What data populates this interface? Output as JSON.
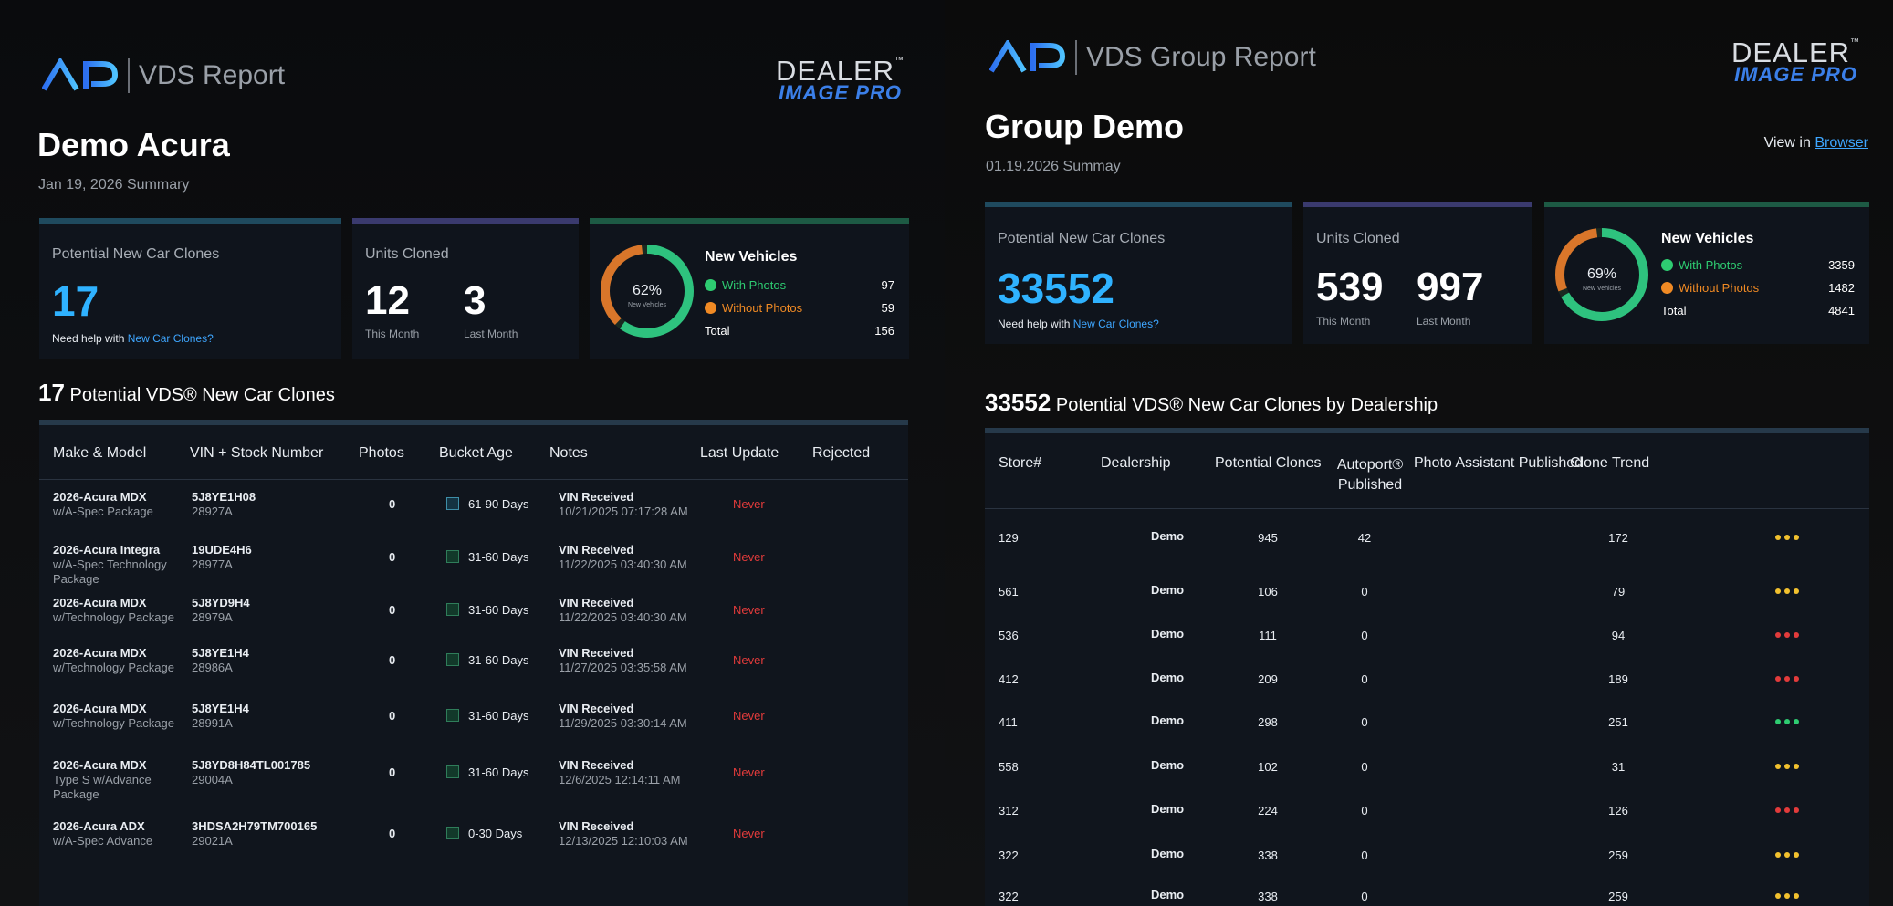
{
  "left": {
    "report_title": "VDS Report",
    "brand_top": "DEALER",
    "brand_tm": "™",
    "brand_bottom": "IMAGE PRO",
    "store_name": "Demo Acura",
    "summary": "Jan 19, 2026 Summary",
    "clones_card": {
      "title": "Potential New Car Clones",
      "value": "17",
      "help_text": "Need help with",
      "help_link": "New Car Clones?"
    },
    "units_card": {
      "title": "Units Cloned",
      "this_month": "12",
      "this_month_label": "This Month",
      "last_month": "3",
      "last_month_label": "Last Month"
    },
    "new_vehicles": {
      "title": "New Vehicles",
      "percent": "62%",
      "ring_label": "New Vehicles",
      "with_photos_label": "With Photos",
      "with_photos": "97",
      "without_photos_label": "Without Photos",
      "without_photos": "59",
      "total_label": "Total",
      "total": "156",
      "fraction": 0.62
    },
    "section_count": "17",
    "section_title": "Potential VDS® New Car Clones",
    "table_headers": [
      "Make & Model",
      "VIN + Stock Number",
      "Photos",
      "Bucket Age",
      "Notes",
      "Last Update",
      "Rejected"
    ],
    "rows": [
      {
        "model": "2026-Acura MDX",
        "trim": "w/A-Spec Package",
        "vin": "5J8YE1H08",
        "stock": "28927A",
        "photos": "0",
        "bucket": "61-90 Days",
        "note": "VIN Received",
        "note_date": "10/21/2025 07:17:28 AM",
        "last_update": "Never"
      },
      {
        "model": "2026-Acura Integra",
        "trim": "w/A-Spec Technology Package",
        "vin": "19UDE4H6",
        "stock": "28977A",
        "photos": "0",
        "bucket": "31-60 Days",
        "note": "VIN Received",
        "note_date": "11/22/2025 03:40:30 AM",
        "last_update": "Never"
      },
      {
        "model": "2026-Acura MDX",
        "trim": "w/Technology Package",
        "vin": "5J8YD9H4",
        "stock": "28979A",
        "photos": "0",
        "bucket": "31-60 Days",
        "note": "VIN Received",
        "note_date": "11/22/2025 03:40:30 AM",
        "last_update": "Never"
      },
      {
        "model": "2026-Acura MDX",
        "trim": "w/Technology Package",
        "vin": "5J8YE1H4",
        "stock": "28986A",
        "photos": "0",
        "bucket": "31-60 Days",
        "note": "VIN Received",
        "note_date": "11/27/2025 03:35:58 AM",
        "last_update": "Never"
      },
      {
        "model": "2026-Acura MDX",
        "trim": "w/Technology Package",
        "vin": "5J8YE1H4",
        "stock": "28991A",
        "photos": "0",
        "bucket": "31-60 Days",
        "note": "VIN Received",
        "note_date": "11/29/2025 03:30:14 AM",
        "last_update": "Never"
      },
      {
        "model": "2026-Acura MDX",
        "trim": "Type S w/Advance Package",
        "vin": "5J8YD8H84TL001785",
        "stock": "29004A",
        "photos": "0",
        "bucket": "31-60 Days",
        "note": "VIN Received",
        "note_date": "12/6/2025 12:14:11 AM",
        "last_update": "Never"
      },
      {
        "model": "2026-Acura ADX",
        "trim": "w/A-Spec Advance",
        "vin": "3HDSA2H79TM700165",
        "stock": "29021A",
        "photos": "0",
        "bucket": "0-30 Days",
        "note": "VIN Received",
        "note_date": "12/13/2025 12:10:03 AM",
        "last_update": "Never"
      }
    ]
  },
  "right": {
    "report_title": "VDS Group Report",
    "brand_top": "DEALER",
    "brand_tm": "™",
    "brand_bottom": "IMAGE PRO",
    "group_name": "Group Demo",
    "summary": "01.19.2026 Summay",
    "view_in": "View in",
    "browser_link": "Browser",
    "clones_card": {
      "title": "Potential New Car Clones",
      "value": "33552",
      "help_text": "Need help with",
      "help_link": "New Car Clones?"
    },
    "units_card": {
      "title": "Units Cloned",
      "this_month": "539",
      "this_month_label": "This Month",
      "last_month": "997",
      "last_month_label": "Last Month"
    },
    "new_vehicles": {
      "title": "New Vehicles",
      "percent": "69%",
      "ring_label": "New Vehicles",
      "with_photos_label": "With Photos",
      "with_photos": "3359",
      "without_photos_label": "Without Photos",
      "without_photos": "1482",
      "total_label": "Total",
      "total": "4841",
      "fraction": 0.69
    },
    "section_count": "33552",
    "section_title": "Potential VDS® New Car Clones by Dealership",
    "table_headers": [
      "Store#",
      "Dealership",
      "Potential Clones",
      "Autoport® Published",
      "Photo Assistant Published",
      "Clone Trend"
    ],
    "rows": [
      {
        "store": "129",
        "dealership": "Demo",
        "clones": "945",
        "autoport": "42",
        "photo_assistant": "172",
        "trend": "yellow"
      },
      {
        "store": "561",
        "dealership": "Demo",
        "clones": "106",
        "autoport": "0",
        "photo_assistant": "79",
        "trend": "yellow"
      },
      {
        "store": "536",
        "dealership": "Demo",
        "clones": "111",
        "autoport": "0",
        "photo_assistant": "94",
        "trend": "red"
      },
      {
        "store": "412",
        "dealership": "Demo",
        "clones": "209",
        "autoport": "0",
        "photo_assistant": "189",
        "trend": "red"
      },
      {
        "store": "411",
        "dealership": "Demo",
        "clones": "298",
        "autoport": "0",
        "photo_assistant": "251",
        "trend": "green"
      },
      {
        "store": "558",
        "dealership": "Demo",
        "clones": "102",
        "autoport": "0",
        "photo_assistant": "31",
        "trend": "yellow"
      },
      {
        "store": "312",
        "dealership": "Demo",
        "clones": "224",
        "autoport": "0",
        "photo_assistant": "126",
        "trend": "red"
      },
      {
        "store": "322",
        "dealership": "Demo",
        "clones": "338",
        "autoport": "0",
        "photo_assistant": "259",
        "trend": "yellow"
      },
      {
        "store": "322",
        "dealership": "Demo",
        "clones": "338",
        "autoport": "0",
        "photo_assistant": "259",
        "trend": "yellow"
      }
    ]
  },
  "colors": {
    "accent_blue": "#2fb2ff",
    "with_photos": "#2ecc71",
    "without_photos": "#f08a24",
    "never_red": "#e23b3b",
    "trend_yellow": "#f2c12e",
    "trend_red": "#e23b3b",
    "trend_green": "#2ecc71"
  },
  "icons": {
    "with_photos": "smile-icon",
    "without_photos": "frown-icon"
  }
}
